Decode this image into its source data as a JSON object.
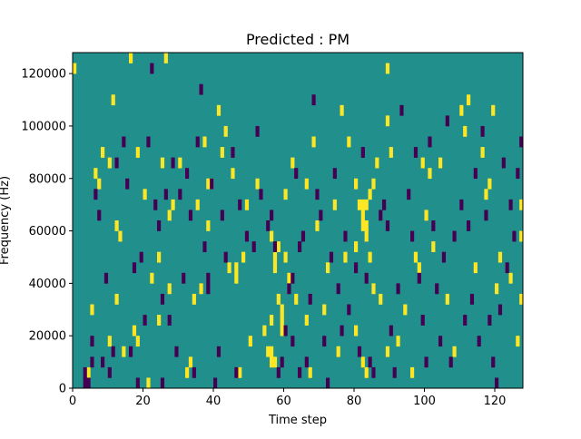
{
  "chart_data": {
    "type": "heatmap",
    "title": "Predicted : PM",
    "xlabel": "Time step",
    "ylabel": "Frequency (Hz)",
    "xlim": [
      0,
      128
    ],
    "ylim": [
      0,
      128000
    ],
    "x_ticks": [
      0,
      20,
      40,
      60,
      80,
      100,
      120
    ],
    "y_ticks": [
      0,
      20000,
      40000,
      60000,
      80000,
      100000,
      120000
    ],
    "x_tick_labels": [
      "0",
      "20",
      "40",
      "60",
      "80",
      "100",
      "120"
    ],
    "y_tick_labels": [
      "0",
      "20000",
      "40000",
      "60000",
      "80000",
      "100000",
      "120000"
    ],
    "grid": false,
    "legend": "none",
    "colors": {
      "background": "#21908d",
      "high": "#fde725",
      "low": "#440154"
    },
    "cell_height_hz": 4000,
    "high_cells": [
      [
        0,
        120000
      ],
      [
        4,
        4000
      ],
      [
        5,
        28000
      ],
      [
        6,
        80000
      ],
      [
        7,
        76000
      ],
      [
        8,
        88000
      ],
      [
        10,
        84000
      ],
      [
        11,
        108000
      ],
      [
        10,
        16000
      ],
      [
        12,
        32000
      ],
      [
        12,
        60000
      ],
      [
        13,
        56000
      ],
      [
        14,
        12000
      ],
      [
        16,
        124000
      ],
      [
        17,
        20000
      ],
      [
        18,
        16000
      ],
      [
        18,
        88000
      ],
      [
        20,
        72000
      ],
      [
        21,
        0
      ],
      [
        22,
        40000
      ],
      [
        24,
        24000
      ],
      [
        24,
        48000
      ],
      [
        25,
        84000
      ],
      [
        26,
        124000
      ],
      [
        27,
        64000
      ],
      [
        27,
        36000
      ],
      [
        28,
        68000
      ],
      [
        30,
        84000
      ],
      [
        32,
        4000
      ],
      [
        33,
        8000
      ],
      [
        34,
        32000
      ],
      [
        35,
        68000
      ],
      [
        36,
        36000
      ],
      [
        37,
        92000
      ],
      [
        38,
        60000
      ],
      [
        38,
        76000
      ],
      [
        39,
        76000
      ],
      [
        41,
        104000
      ],
      [
        42,
        88000
      ],
      [
        43,
        96000
      ],
      [
        44,
        44000
      ],
      [
        45,
        80000
      ],
      [
        46,
        44000
      ],
      [
        46,
        40000
      ],
      [
        47,
        4000
      ],
      [
        48,
        48000
      ],
      [
        49,
        68000
      ],
      [
        50,
        16000
      ],
      [
        52,
        76000
      ],
      [
        54,
        20000
      ],
      [
        55,
        12000
      ],
      [
        56,
        56000
      ],
      [
        56,
        24000
      ],
      [
        56,
        12000
      ],
      [
        56,
        8000
      ],
      [
        57,
        48000
      ],
      [
        57,
        44000
      ],
      [
        57,
        8000
      ],
      [
        58,
        52000
      ],
      [
        58,
        32000
      ],
      [
        59,
        28000
      ],
      [
        59,
        24000
      ],
      [
        59,
        20000
      ],
      [
        60,
        72000
      ],
      [
        60,
        48000
      ],
      [
        61,
        40000
      ],
      [
        62,
        84000
      ],
      [
        63,
        32000
      ],
      [
        66,
        76000
      ],
      [
        66,
        24000
      ],
      [
        67,
        4000
      ],
      [
        68,
        92000
      ],
      [
        69,
        60000
      ],
      [
        71,
        28000
      ],
      [
        72,
        44000
      ],
      [
        74,
        68000
      ],
      [
        75,
        12000
      ],
      [
        76,
        104000
      ],
      [
        77,
        48000
      ],
      [
        78,
        92000
      ],
      [
        80,
        76000
      ],
      [
        80,
        52000
      ],
      [
        80,
        20000
      ],
      [
        81,
        68000
      ],
      [
        82,
        68000
      ],
      [
        82,
        64000
      ],
      [
        82,
        60000
      ],
      [
        82,
        8000
      ],
      [
        83,
        68000
      ],
      [
        83,
        60000
      ],
      [
        83,
        56000
      ],
      [
        83,
        4000
      ],
      [
        84,
        72000
      ],
      [
        84,
        48000
      ],
      [
        85,
        76000
      ],
      [
        85,
        36000
      ],
      [
        86,
        84000
      ],
      [
        87,
        32000
      ],
      [
        89,
        120000
      ],
      [
        89,
        100000
      ],
      [
        89,
        12000
      ],
      [
        90,
        88000
      ],
      [
        92,
        16000
      ],
      [
        94,
        28000
      ],
      [
        96,
        4000
      ],
      [
        97,
        48000
      ],
      [
        98,
        44000
      ],
      [
        99,
        84000
      ],
      [
        100,
        64000
      ],
      [
        101,
        80000
      ],
      [
        102,
        52000
      ],
      [
        104,
        84000
      ],
      [
        106,
        32000
      ],
      [
        108,
        12000
      ],
      [
        110,
        104000
      ],
      [
        111,
        96000
      ],
      [
        112,
        108000
      ],
      [
        114,
        44000
      ],
      [
        116,
        88000
      ],
      [
        117,
        72000
      ],
      [
        118,
        76000
      ],
      [
        119,
        104000
      ],
      [
        120,
        36000
      ],
      [
        121,
        48000
      ],
      [
        124,
        40000
      ],
      [
        126,
        16000
      ],
      [
        127,
        32000
      ],
      [
        127,
        56000
      ],
      [
        127,
        68000
      ]
    ],
    "low_cells": [
      [
        3,
        0
      ],
      [
        4,
        0
      ],
      [
        3,
        4000
      ],
      [
        5,
        8000
      ],
      [
        5,
        16000
      ],
      [
        6,
        72000
      ],
      [
        7,
        64000
      ],
      [
        8,
        8000
      ],
      [
        9,
        40000
      ],
      [
        10,
        4000
      ],
      [
        11,
        12000
      ],
      [
        12,
        84000
      ],
      [
        14,
        92000
      ],
      [
        15,
        76000
      ],
      [
        16,
        12000
      ],
      [
        17,
        44000
      ],
      [
        18,
        0
      ],
      [
        19,
        48000
      ],
      [
        20,
        24000
      ],
      [
        21,
        92000
      ],
      [
        22,
        120000
      ],
      [
        23,
        68000
      ],
      [
        24,
        60000
      ],
      [
        25,
        32000
      ],
      [
        25,
        0
      ],
      [
        26,
        72000
      ],
      [
        27,
        24000
      ],
      [
        28,
        84000
      ],
      [
        29,
        12000
      ],
      [
        30,
        72000
      ],
      [
        31,
        40000
      ],
      [
        32,
        80000
      ],
      [
        33,
        64000
      ],
      [
        34,
        4000
      ],
      [
        35,
        92000
      ],
      [
        36,
        112000
      ],
      [
        37,
        52000
      ],
      [
        38,
        40000
      ],
      [
        38,
        36000
      ],
      [
        39,
        76000
      ],
      [
        40,
        0
      ],
      [
        41,
        12000
      ],
      [
        42,
        64000
      ],
      [
        43,
        48000
      ],
      [
        45,
        88000
      ],
      [
        46,
        4000
      ],
      [
        47,
        68000
      ],
      [
        49,
        56000
      ],
      [
        51,
        52000
      ],
      [
        52,
        96000
      ],
      [
        53,
        72000
      ],
      [
        55,
        60000
      ],
      [
        56,
        64000
      ],
      [
        57,
        52000
      ],
      [
        58,
        4000
      ],
      [
        59,
        8000
      ],
      [
        60,
        20000
      ],
      [
        61,
        36000
      ],
      [
        62,
        40000
      ],
      [
        62,
        16000
      ],
      [
        63,
        80000
      ],
      [
        64,
        52000
      ],
      [
        64,
        4000
      ],
      [
        65,
        56000
      ],
      [
        66,
        8000
      ],
      [
        67,
        32000
      ],
      [
        68,
        108000
      ],
      [
        69,
        72000
      ],
      [
        70,
        64000
      ],
      [
        71,
        16000
      ],
      [
        72,
        0
      ],
      [
        73,
        48000
      ],
      [
        74,
        80000
      ],
      [
        75,
        36000
      ],
      [
        76,
        20000
      ],
      [
        77,
        56000
      ],
      [
        78,
        28000
      ],
      [
        80,
        44000
      ],
      [
        81,
        12000
      ],
      [
        82,
        88000
      ],
      [
        83,
        40000
      ],
      [
        84,
        8000
      ],
      [
        85,
        4000
      ],
      [
        87,
        64000
      ],
      [
        88,
        68000
      ],
      [
        89,
        60000
      ],
      [
        90,
        20000
      ],
      [
        91,
        4000
      ],
      [
        92,
        36000
      ],
      [
        93,
        104000
      ],
      [
        95,
        72000
      ],
      [
        96,
        56000
      ],
      [
        97,
        88000
      ],
      [
        98,
        40000
      ],
      [
        99,
        24000
      ],
      [
        100,
        8000
      ],
      [
        101,
        92000
      ],
      [
        102,
        60000
      ],
      [
        103,
        36000
      ],
      [
        104,
        16000
      ],
      [
        105,
        48000
      ],
      [
        106,
        100000
      ],
      [
        107,
        8000
      ],
      [
        108,
        56000
      ],
      [
        110,
        68000
      ],
      [
        111,
        24000
      ],
      [
        112,
        60000
      ],
      [
        113,
        32000
      ],
      [
        114,
        80000
      ],
      [
        115,
        16000
      ],
      [
        116,
        96000
      ],
      [
        117,
        64000
      ],
      [
        118,
        24000
      ],
      [
        119,
        8000
      ],
      [
        120,
        0
      ],
      [
        121,
        28000
      ],
      [
        122,
        84000
      ],
      [
        123,
        44000
      ],
      [
        124,
        68000
      ],
      [
        125,
        56000
      ],
      [
        126,
        80000
      ],
      [
        127,
        92000
      ]
    ]
  }
}
